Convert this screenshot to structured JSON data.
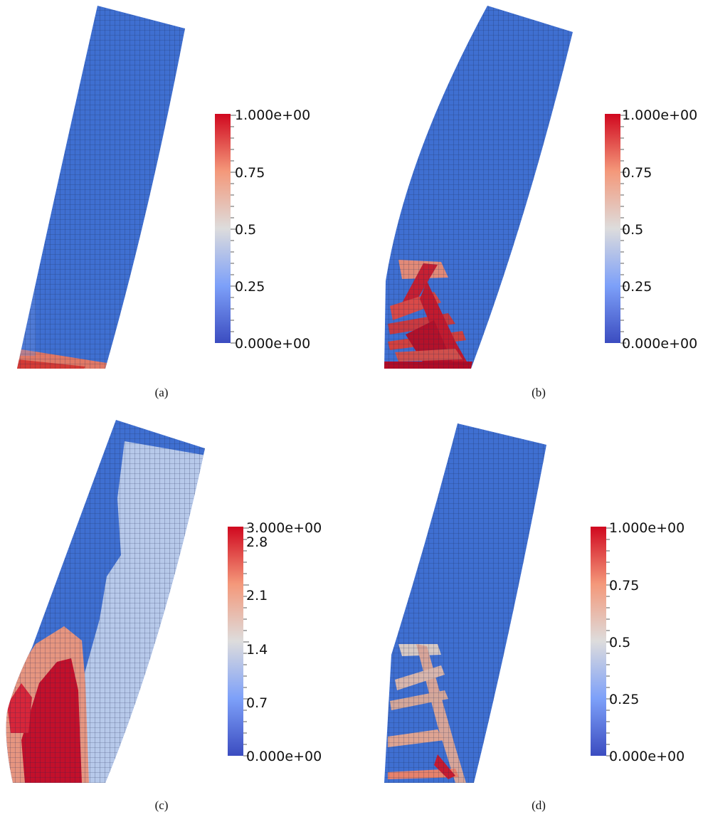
{
  "panels": [
    {
      "id": "a",
      "caption": "(a)",
      "colorbar": {
        "min": 0,
        "max": 1,
        "labels": [
          {
            "text": "1.000e+00",
            "value": 1.0
          },
          {
            "text": "0.75",
            "value": 0.75
          },
          {
            "text": "0.5",
            "value": 0.5
          },
          {
            "text": "0.25",
            "value": 0.25
          },
          {
            "text": "0.000e+00",
            "value": 0.0
          }
        ]
      }
    },
    {
      "id": "b",
      "caption": "(b)",
      "colorbar": {
        "min": 0,
        "max": 1,
        "labels": [
          {
            "text": "1.000e+00",
            "value": 1.0
          },
          {
            "text": "0.75",
            "value": 0.75
          },
          {
            "text": "0.5",
            "value": 0.5
          },
          {
            "text": "0.25",
            "value": 0.25
          },
          {
            "text": "0.000e+00",
            "value": 0.0
          }
        ]
      }
    },
    {
      "id": "c",
      "caption": "(c)",
      "colorbar": {
        "min": 0,
        "max": 3,
        "labels": [
          {
            "text": "3.000e+00",
            "value": 3.0
          },
          {
            "text": "2.8",
            "value": 2.8
          },
          {
            "text": "2.1",
            "value": 2.1
          },
          {
            "text": "1.4",
            "value": 1.4
          },
          {
            "text": "0.7",
            "value": 0.7
          },
          {
            "text": "0.000e+00",
            "value": 0.0
          }
        ]
      }
    },
    {
      "id": "d",
      "caption": "(d)",
      "colorbar": {
        "min": 0,
        "max": 1,
        "labels": [
          {
            "text": "1.000e+00",
            "value": 1.0
          },
          {
            "text": "0.75",
            "value": 0.75
          },
          {
            "text": "0.5",
            "value": 0.5
          },
          {
            "text": "0.25",
            "value": 0.25
          },
          {
            "text": "0.000e+00",
            "value": 0.0
          }
        ]
      }
    }
  ],
  "colormap": {
    "low": "#3b5fc9",
    "mid": "#dddddd",
    "high": "#d0081f"
  }
}
